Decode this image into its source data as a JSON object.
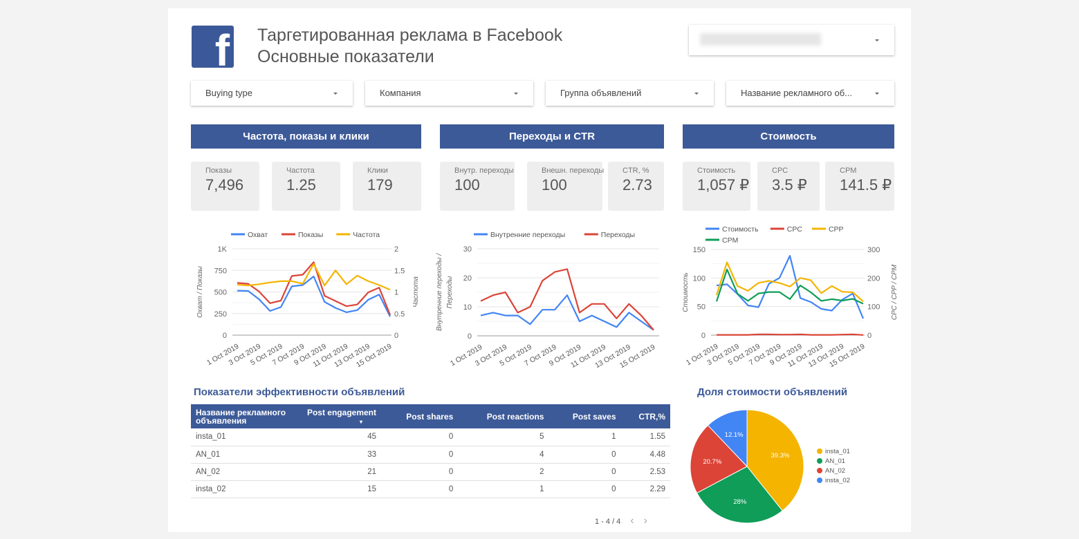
{
  "header": {
    "title_line1": "Таргетированная реклама в Facebook",
    "title_line2": "Основные показатели",
    "logo_letter": "f"
  },
  "filters": [
    "Buying type",
    "Компания",
    "Группа объявлений",
    "Название рекламного об..."
  ],
  "sections": [
    "Частота, показы и клики",
    "Переходы и CTR",
    "Стоимость"
  ],
  "kpis": [
    {
      "label": "Показы",
      "value": "7,496"
    },
    {
      "label": "Частота",
      "value": "1.25"
    },
    {
      "label": "Клики",
      "value": "179"
    },
    {
      "label": "Внутр. переходы",
      "value": "100"
    },
    {
      "label": "Внешн. переходы",
      "value": "100"
    },
    {
      "label": "CTR, %",
      "value": "2.73"
    },
    {
      "label": "Стоимость",
      "value": "1,057 ₽"
    },
    {
      "label": "CPC",
      "value": "3.5 ₽"
    },
    {
      "label": "CPM",
      "value": "141.5 ₽"
    }
  ],
  "colors": {
    "blue": "#4285f4",
    "red": "#db4437",
    "yellow": "#f4b400",
    "green": "#0f9d58",
    "brand": "#3d5a98"
  },
  "chart_data": [
    {
      "type": "line",
      "x": [
        "1 Oct 2019",
        "2 Oct 2019",
        "3 Oct 2019",
        "4 Oct 2019",
        "5 Oct 2019",
        "6 Oct 2019",
        "7 Oct 2019",
        "8 Oct 2019",
        "9 Oct 2019",
        "10 Oct 2019",
        "11 Oct 2019",
        "12 Oct 2019",
        "13 Oct 2019",
        "14 Oct 2019",
        "15 Oct 2019"
      ],
      "xticks": [
        "1 Oct 2019",
        "3 Oct 2019",
        "5 Oct 2019",
        "7 Oct 2019",
        "9 Oct 2019",
        "11 Oct 2019",
        "13 Oct 2019",
        "15 Oct 2019"
      ],
      "ylabel": "Охват / Показы",
      "y2label": "Частота",
      "ylim": [
        0,
        1000
      ],
      "y2lim": [
        0,
        2
      ],
      "yticks": [
        "0",
        "250",
        "500",
        "750",
        "1K"
      ],
      "y2ticks": [
        "0",
        "0.5",
        "1",
        "1.5",
        "2"
      ],
      "series": [
        {
          "name": "Охват",
          "color": "#4285f4",
          "axis": "left",
          "values": [
            515,
            512,
            415,
            280,
            325,
            565,
            580,
            680,
            385,
            315,
            265,
            290,
            410,
            470,
            215
          ]
        },
        {
          "name": "Показы",
          "color": "#db4437",
          "axis": "left",
          "values": [
            605,
            595,
            505,
            370,
            400,
            685,
            700,
            845,
            455,
            395,
            335,
            355,
            495,
            550,
            235
          ]
        },
        {
          "name": "Частота",
          "color": "#f4b400",
          "axis": "right",
          "values": [
            1.17,
            1.15,
            1.18,
            1.22,
            1.25,
            1.25,
            1.19,
            1.65,
            1.15,
            1.5,
            1.18,
            1.38,
            1.25,
            1.16,
            1.05
          ]
        }
      ]
    },
    {
      "type": "line",
      "x": [
        "1 Oct 2019",
        "2 Oct 2019",
        "3 Oct 2019",
        "4 Oct 2019",
        "5 Oct 2019",
        "6 Oct 2019",
        "7 Oct 2019",
        "8 Oct 2019",
        "9 Oct 2019",
        "10 Oct 2019",
        "11 Oct 2019",
        "12 Oct 2019",
        "13 Oct 2019",
        "14 Oct 2019",
        "15 Oct 2019"
      ],
      "xticks": [
        "1 Oct 2019",
        "3 Oct 2019",
        "5 Oct 2019",
        "7 Oct 2019",
        "9 Oct 2019",
        "11 Oct 2019",
        "13 Oct 2019",
        "15 Oct 2019"
      ],
      "ylabel": "Внутренние переходы /",
      "ylabel2": "Переходы",
      "ylim": [
        0,
        30
      ],
      "yticks": [
        "0",
        "10",
        "20",
        "30"
      ],
      "series": [
        {
          "name": "Внутренние переходы",
          "color": "#4285f4",
          "axis": "left",
          "values": [
            7,
            8,
            7,
            7,
            4,
            9,
            9,
            14,
            5,
            7,
            5,
            3,
            8,
            5,
            2
          ]
        },
        {
          "name": "Переходы",
          "color": "#db4437",
          "axis": "left",
          "values": [
            12,
            14,
            15,
            8,
            10,
            19,
            22,
            23,
            8,
            11,
            11,
            6,
            11,
            7,
            2
          ]
        }
      ]
    },
    {
      "type": "line",
      "x": [
        "1 Oct 2019",
        "2 Oct 2019",
        "3 Oct 2019",
        "4 Oct 2019",
        "5 Oct 2019",
        "6 Oct 2019",
        "7 Oct 2019",
        "8 Oct 2019",
        "9 Oct 2019",
        "10 Oct 2019",
        "11 Oct 2019",
        "12 Oct 2019",
        "13 Oct 2019",
        "14 Oct 2019",
        "15 Oct 2019"
      ],
      "xticks": [
        "1 Oct 2019",
        "3 Oct 2019",
        "5 Oct 2019",
        "7 Oct 2019",
        "9 Oct 2019",
        "11 Oct 2019",
        "13 Oct 2019",
        "15 Oct 2019"
      ],
      "ylabel": "Стоимость",
      "y2label": "CPC / CPP / CPM",
      "ylim": [
        0,
        150
      ],
      "y2lim": [
        0,
        300
      ],
      "yticks": [
        "0",
        "50",
        "100",
        "150"
      ],
      "y2ticks": [
        "0",
        "100",
        "200",
        "300"
      ],
      "series": [
        {
          "name": "Стоимость",
          "color": "#4285f4",
          "axis": "left",
          "values": [
            87,
            89,
            72,
            52,
            49,
            90,
            100,
            139,
            65,
            58,
            46,
            43,
            62,
            73,
            29
          ]
        },
        {
          "name": "CPC",
          "color": "#db4437",
          "axis": "right",
          "values": [
            1,
            1,
            1,
            1,
            3,
            3,
            2,
            2,
            3,
            1,
            1,
            1,
            2,
            3,
            0.5
          ]
        },
        {
          "name": "CPP",
          "color": "#f4b400",
          "axis": "right",
          "values": [
            140,
            255,
            172,
            155,
            183,
            190,
            183,
            170,
            200,
            192,
            147,
            172,
            152,
            150,
            118
          ]
        },
        {
          "name": "CPM",
          "color": "#0f9d58",
          "axis": "right",
          "values": [
            118,
            230,
            145,
            120,
            146,
            151,
            151,
            126,
            174,
            150,
            120,
            126,
            121,
            127,
            110
          ]
        }
      ]
    },
    {
      "type": "pie",
      "title": "Доля стоимости объявлений",
      "slices": [
        {
          "name": "insta_01",
          "value": 39.3,
          "label": "39.3%",
          "color": "#f4b400"
        },
        {
          "name": "AN_01",
          "value": 28,
          "label": "28%",
          "color": "#0f9d58"
        },
        {
          "name": "AN_02",
          "value": 20.7,
          "label": "20.7%",
          "color": "#db4437"
        },
        {
          "name": "insta_02",
          "value": 12.1,
          "label": "12.1%",
          "color": "#4285f4"
        }
      ]
    }
  ],
  "table": {
    "title": "Показатели эффективности объявлений",
    "headers": [
      "Название рекламного объявления",
      "Post engagement",
      "Post shares",
      "Post reactions",
      "Post saves",
      "CTR,%"
    ],
    "rows": [
      [
        "insta_01",
        "45",
        "0",
        "5",
        "1",
        "1.55"
      ],
      [
        "AN_01",
        "33",
        "0",
        "4",
        "0",
        "4.48"
      ],
      [
        "AN_02",
        "21",
        "0",
        "2",
        "0",
        "2.53"
      ],
      [
        "insta_02",
        "15",
        "0",
        "1",
        "0",
        "2.29"
      ]
    ],
    "pagination": "1 - 4 / 4",
    "prev": "‹",
    "next": "›",
    "sort_indicator": "▾"
  }
}
